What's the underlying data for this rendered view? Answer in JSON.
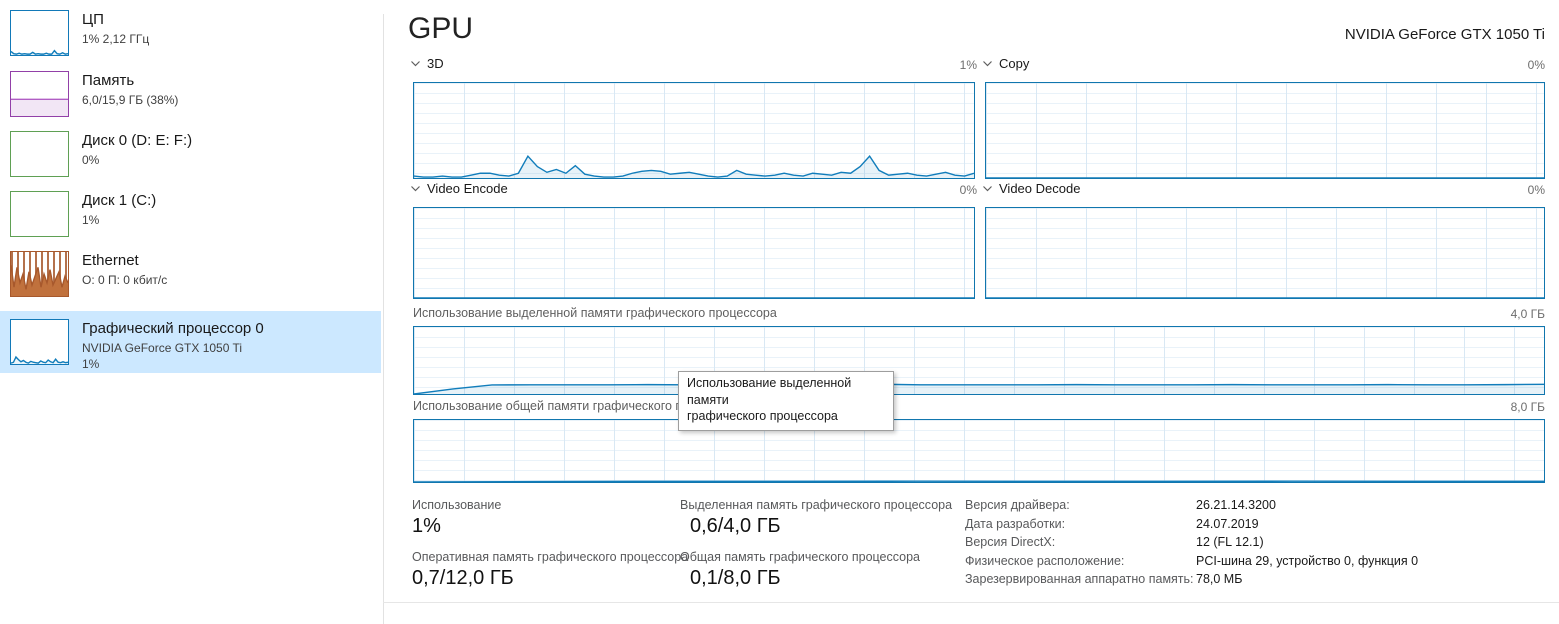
{
  "app": {
    "accent": "#117dbb",
    "selected_bg": "#cce8ff"
  },
  "sidebar": {
    "items": [
      {
        "title": "ЦП",
        "subtitle": "1% 2,12 ГГц"
      },
      {
        "title": "Память",
        "subtitle": "6,0/15,9 ГБ (38%)"
      },
      {
        "title": "Диск 0 (D: E: F:)",
        "subtitle": "0%"
      },
      {
        "title": "Диск 1 (C:)",
        "subtitle": "1%"
      },
      {
        "title": "Ethernet",
        "subtitle": "О: 0 П: 0 кбит/с"
      },
      {
        "title": "Графический процессор 0",
        "subtitle": "NVIDIA GeForce GTX 1050 Ti",
        "subtitle2": "1%",
        "selected": true
      }
    ],
    "sparks": {
      "cpu": {
        "max": 100,
        "stroke": "#117dbb",
        "fill": "rgba(17,125,187,0.08)",
        "series": [
          8,
          3,
          2,
          4,
          2,
          3,
          2,
          2,
          6,
          2,
          3,
          2,
          2,
          4,
          2,
          2,
          10,
          3,
          2,
          5,
          2,
          3
        ]
      },
      "memory": {
        "max": 100,
        "stroke": "#b05ec4",
        "fill": "#f2e6f5",
        "series": [
          38,
          38
        ]
      },
      "ethernet": {
        "max": 100,
        "stroke": "#a7582c",
        "fill": "#c0713d",
        "series": [
          70,
          20,
          65,
          30,
          50,
          15,
          55,
          25,
          45,
          65,
          20,
          50,
          30,
          60,
          25,
          40,
          55,
          20,
          45,
          30
        ]
      },
      "gpu": {
        "max": 100,
        "stroke": "#117dbb",
        "fill": "rgba(17,125,187,0.08)",
        "series": [
          2,
          4,
          16,
          10,
          5,
          8,
          4,
          2,
          6,
          4,
          3,
          2,
          7,
          4,
          3,
          9,
          5,
          3,
          11,
          4,
          3,
          5,
          3,
          4
        ]
      }
    }
  },
  "header": {
    "title": "GPU",
    "device": "NVIDIA GeForce GTX 1050 Ti"
  },
  "charts": {
    "gpu3d": {
      "label": "3D",
      "value": "1%",
      "graph": {
        "max": 100,
        "stroke": "#117dbb",
        "fill": "rgba(17,125,187,0.10)",
        "series": [
          2,
          1,
          1,
          2,
          1,
          1,
          3,
          5,
          5,
          3,
          2,
          5,
          23,
          12,
          6,
          9,
          5,
          13,
          4,
          2,
          1,
          1,
          2,
          5,
          7,
          8,
          7,
          4,
          5,
          6,
          4,
          2,
          1,
          2,
          8,
          4,
          3,
          2,
          3,
          5,
          3,
          2,
          5,
          4,
          3,
          6,
          5,
          12,
          23,
          8,
          3,
          4,
          5,
          3,
          2,
          4,
          6,
          3,
          2,
          5
        ]
      }
    },
    "copy": {
      "label": "Copy",
      "value": "0%",
      "graph": {
        "max": 100,
        "stroke": "#117dbb",
        "fill": "rgba(17,125,187,0.10)",
        "series": [
          0,
          0
        ]
      }
    },
    "video_encode": {
      "label": "Video Encode",
      "value": "0%",
      "graph": {
        "max": 100,
        "stroke": "#117dbb",
        "fill": "rgba(17,125,187,0.10)",
        "series": [
          0,
          0
        ]
      }
    },
    "video_decode": {
      "label": "Video Decode",
      "value": "0%",
      "graph": {
        "max": 100,
        "stroke": "#117dbb",
        "fill": "rgba(17,125,187,0.10)",
        "series": [
          0,
          0
        ]
      }
    },
    "dedicated": {
      "label": "Использование выделенной памяти графического процессора",
      "max_label": "4,0 ГБ",
      "graph": {
        "max": 4,
        "stroke": "#117dbb",
        "fill": "rgba(17,125,187,0.10)",
        "series": [
          0,
          0.3,
          0.54,
          0.55,
          0.55,
          0.55,
          0.56,
          0.55,
          0.55,
          0.58,
          0.63,
          0.62,
          0.58,
          0.55,
          0.55,
          0.55,
          0.55,
          0.56,
          0.55,
          0.55,
          0.55,
          0.56,
          0.55,
          0.55,
          0.55,
          0.56,
          0.55,
          0.55,
          0.56,
          0.58
        ]
      }
    },
    "shared": {
      "label": "Использование общей памяти графического процессора",
      "max_label": "8,0 ГБ",
      "graph": {
        "max": 8,
        "stroke": "#117dbb",
        "fill": "rgba(17,125,187,0.10)",
        "series": [
          0,
          0.06,
          0.09,
          0.09,
          0.1,
          0.09,
          0.09,
          0.1,
          0.09,
          0.09
        ]
      }
    }
  },
  "tooltip": {
    "line1": "Использование выделенной памяти",
    "line2": "графического процессора"
  },
  "stats": {
    "usage": {
      "label": "Использование",
      "value": "1%"
    },
    "dedicated_memory": {
      "label": "Выделенная память графического процессора",
      "value": "0,6/4,0 ГБ"
    },
    "gpu_ram": {
      "label": "Оперативная память графического процессора",
      "value": "0,7/12,0 ГБ"
    },
    "shared_memory": {
      "label": "Общая память графического процессора",
      "value": "0,1/8,0 ГБ"
    }
  },
  "details": [
    {
      "label": "Версия драйвера:",
      "value": "26.21.14.3200"
    },
    {
      "label": "Дата разработки:",
      "value": "24.07.2019"
    },
    {
      "label": "Версия DirectX:",
      "value": "12 (FL 12.1)"
    },
    {
      "label": "Физическое расположение:",
      "value": "PCI-шина 29, устройство 0, функция 0"
    },
    {
      "label": "Зарезервированная аппаратно память:",
      "value": "78,0 МБ"
    }
  ]
}
